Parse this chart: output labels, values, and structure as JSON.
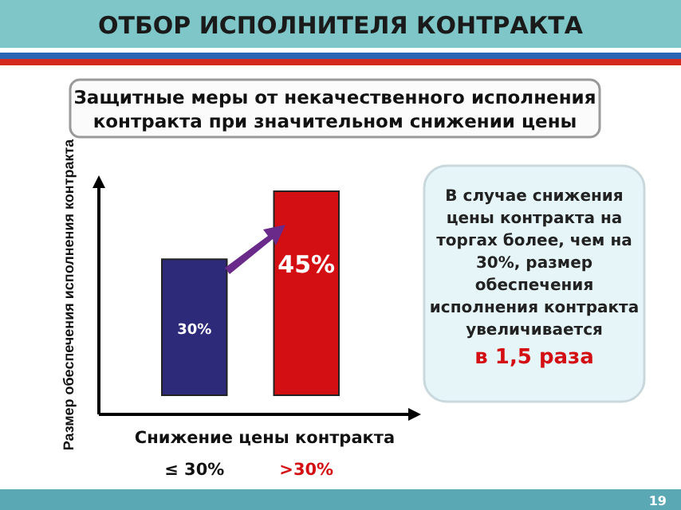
{
  "chart_data": {
    "type": "bar",
    "title": "ОТБОР ИСПОЛНИТЕЛЯ КОНТРАКТА",
    "subtitle": "Защитные меры от некачественного исполнения контракта при значительном снижении цены",
    "xlabel": "Снижение цены контракта",
    "ylabel": "Размер обеспечения исполнения контракта",
    "categories": [
      "≤ 30%",
      ">30%"
    ],
    "values": [
      30,
      45
    ],
    "colors": [
      "#2e2a7a",
      "#d40f14"
    ],
    "value_labels": [
      "30%",
      "45%"
    ],
    "annotations": [
      "В случае снижения цены контракта на торгах более, чем на 30%, размер обеспечения исполнения контракта увеличивается",
      "в 1,5 раза",
      "19"
    ]
  }
}
